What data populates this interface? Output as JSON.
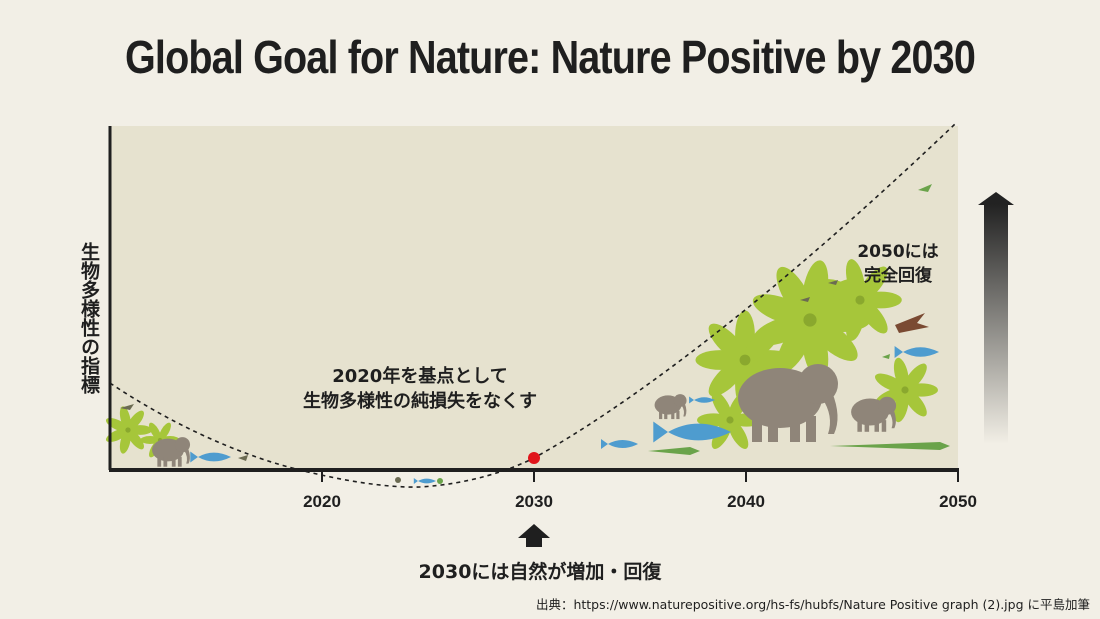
{
  "chart_data": {
    "type": "line",
    "title": "Global Goal for Nature: Nature Positive by 2030",
    "ylabel": "生物多様性の指標",
    "xlabel": "",
    "x_ticks": [
      "2020",
      "2030",
      "2040",
      "2050"
    ],
    "xlim": [
      2010,
      2050
    ],
    "marker": {
      "x": 2030,
      "color": "#e0151b"
    },
    "annotations": [
      {
        "id": "baseline",
        "lines": [
          "2020年を基点として",
          "生物多様性の純損失をなくす"
        ]
      },
      {
        "id": "recovery",
        "lines": [
          "2050には",
          "完全回復"
        ]
      },
      {
        "id": "increase",
        "text": "2030には自然が増加・回復"
      }
    ],
    "grid": false,
    "legend": "none"
  },
  "source": "出典：https://www.naturepositive.org/hs-fs/hubfs/Nature Positive graph (2).jpg に平島加筆",
  "colors": {
    "background": "#f2efe6",
    "plot_area": "#e6e2cf",
    "axis": "#1f1f1f",
    "leaf": "#a6c63a",
    "animal": "#8f8579",
    "fish": "#4e9ccf",
    "croc": "#6aa34a"
  }
}
